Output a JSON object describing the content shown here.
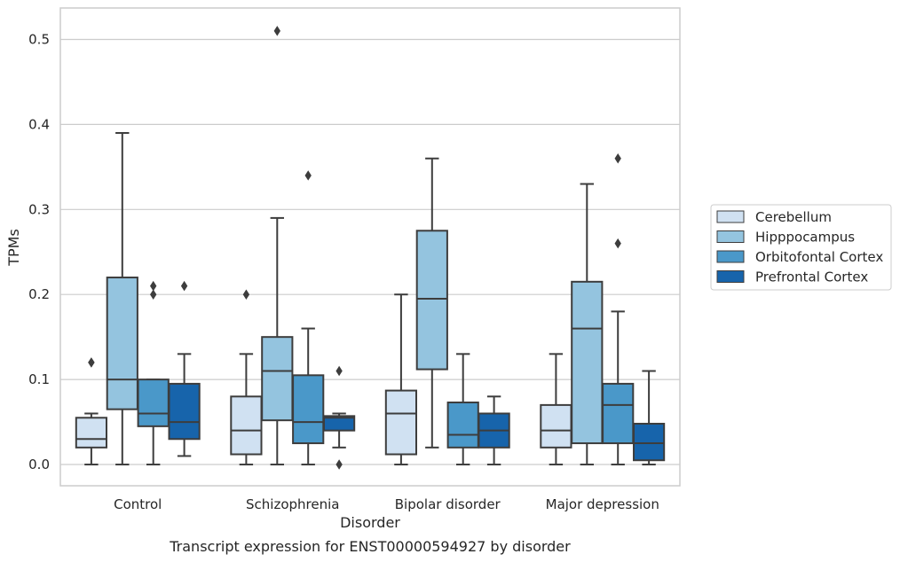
{
  "chart_data": {
    "type": "box",
    "title": "",
    "caption": "Transcript expression for ENST00000594927 by disorder",
    "xlabel": "Disorder",
    "ylabel": "TPMs",
    "categories": [
      "Control",
      "Schizophrenia",
      "Bipolar disorder",
      "Major depression"
    ],
    "ylim": [
      -0.025,
      0.537
    ],
    "yticks": [
      0.0,
      0.1,
      0.2,
      0.3,
      0.4,
      0.5
    ],
    "ytick_labels": [
      "0.0",
      "0.1",
      "0.2",
      "0.3",
      "0.4",
      "0.5"
    ],
    "grid": "y",
    "legend_position": "right",
    "series": [
      {
        "name": "Cerebellum",
        "color": "#d0e1f2",
        "boxes": [
          {
            "whisker_low": 0.0,
            "q1": 0.02,
            "median": 0.03,
            "q3": 0.055,
            "whisker_high": 0.06,
            "outliers": [
              0.12,
              0.12
            ]
          },
          {
            "whisker_low": 0.0,
            "q1": 0.012,
            "median": 0.04,
            "q3": 0.08,
            "whisker_high": 0.13,
            "outliers": [
              0.2
            ]
          },
          {
            "whisker_low": 0.0,
            "q1": 0.012,
            "median": 0.06,
            "q3": 0.087,
            "whisker_high": 0.2,
            "outliers": []
          },
          {
            "whisker_low": 0.0,
            "q1": 0.02,
            "median": 0.04,
            "q3": 0.07,
            "whisker_high": 0.13,
            "outliers": []
          }
        ]
      },
      {
        "name": "Hipppocampus",
        "color": "#94c4df",
        "boxes": [
          {
            "whisker_low": 0.0,
            "q1": 0.065,
            "median": 0.1,
            "q3": 0.22,
            "whisker_high": 0.39,
            "outliers": []
          },
          {
            "whisker_low": 0.0,
            "q1": 0.052,
            "median": 0.11,
            "q3": 0.15,
            "whisker_high": 0.29,
            "outliers": [
              0.51
            ]
          },
          {
            "whisker_low": 0.02,
            "q1": 0.112,
            "median": 0.195,
            "q3": 0.275,
            "whisker_high": 0.36,
            "outliers": []
          },
          {
            "whisker_low": 0.0,
            "q1": 0.025,
            "median": 0.16,
            "q3": 0.215,
            "whisker_high": 0.33,
            "outliers": []
          }
        ]
      },
      {
        "name": "Orbitofontal Cortex",
        "color": "#4a98c9",
        "boxes": [
          {
            "whisker_low": 0.0,
            "q1": 0.045,
            "median": 0.06,
            "q3": 0.1,
            "whisker_high": 0.1,
            "outliers": [
              0.2,
              0.21
            ]
          },
          {
            "whisker_low": 0.0,
            "q1": 0.025,
            "median": 0.05,
            "q3": 0.105,
            "whisker_high": 0.16,
            "outliers": [
              0.34
            ]
          },
          {
            "whisker_low": 0.0,
            "q1": 0.02,
            "median": 0.035,
            "q3": 0.073,
            "whisker_high": 0.13,
            "outliers": []
          },
          {
            "whisker_low": 0.0,
            "q1": 0.025,
            "median": 0.07,
            "q3": 0.095,
            "whisker_high": 0.18,
            "outliers": [
              0.26,
              0.36
            ]
          }
        ]
      },
      {
        "name": "Prefrontal Cortex",
        "color": "#1764ab",
        "boxes": [
          {
            "whisker_low": 0.01,
            "q1": 0.03,
            "median": 0.05,
            "q3": 0.095,
            "whisker_high": 0.13,
            "outliers": [
              0.21
            ]
          },
          {
            "whisker_low": 0.02,
            "q1": 0.04,
            "median": 0.055,
            "q3": 0.057,
            "whisker_high": 0.06,
            "outliers": [
              0.11,
              0.0
            ]
          },
          {
            "whisker_low": 0.0,
            "q1": 0.02,
            "median": 0.04,
            "q3": 0.06,
            "whisker_high": 0.08,
            "outliers": []
          },
          {
            "whisker_low": 0.0,
            "q1": 0.005,
            "median": 0.025,
            "q3": 0.048,
            "whisker_high": 0.11,
            "outliers": []
          }
        ]
      }
    ]
  }
}
